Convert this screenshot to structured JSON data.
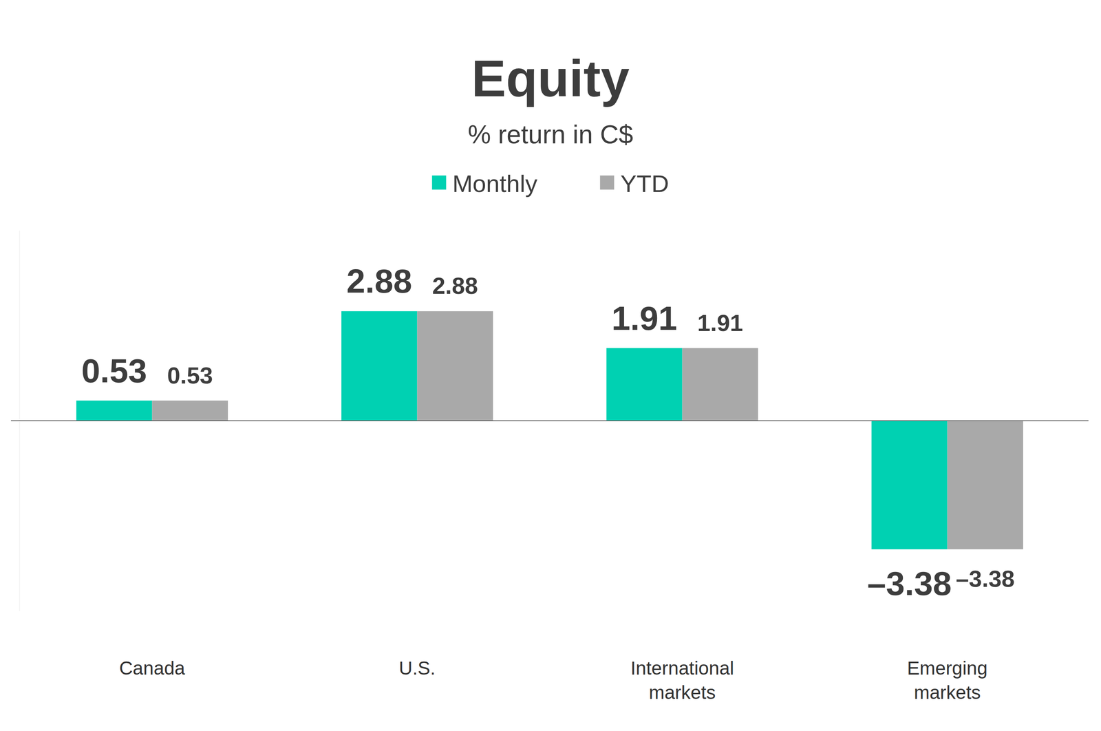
{
  "chart_data": {
    "type": "bar",
    "title": "Equity",
    "subtitle": "% return in C$",
    "categories": [
      "Canada",
      "U.S.",
      "International markets",
      "Emerging markets"
    ],
    "series": [
      {
        "name": "Monthly",
        "color": "#00d1b2",
        "values": [
          0.53,
          2.88,
          1.91,
          -3.38
        ],
        "value_labels": [
          "0.53",
          "2.88",
          "1.91",
          "–3.38"
        ]
      },
      {
        "name": "YTD",
        "color": "#a9a9a9",
        "values": [
          0.53,
          2.88,
          1.91,
          -3.38
        ],
        "value_labels": [
          "0.53",
          "2.88",
          "1.91",
          "–3.38"
        ]
      }
    ],
    "ylim": [
      -5,
      5
    ],
    "yticks": [
      0
    ],
    "grid": false,
    "legend": "top",
    "data_labels": true,
    "tick_labels": "x"
  }
}
